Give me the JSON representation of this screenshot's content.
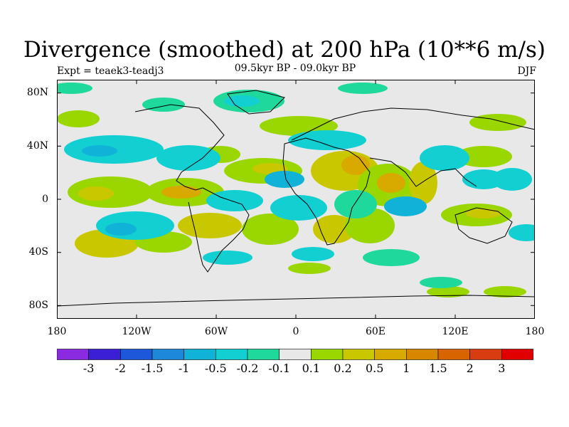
{
  "title": "Divergence (smoothed) at 200 hPa (10**6 m/s)",
  "experiment": "Expt = teaek3-teadj3",
  "period": "09.5kyr BP - 09.0kyr BP",
  "season": "DJF",
  "map": {
    "lon_range": [
      -180,
      180
    ],
    "lat_range": [
      -90,
      90
    ],
    "background_color": "#e8e8e8",
    "lat_ticks": [
      "80N",
      "40N",
      "0",
      "40S",
      "80S"
    ],
    "lon_ticks": [
      "180",
      "120W",
      "60W",
      "0",
      "60E",
      "120E",
      "180"
    ]
  },
  "colorbar": {
    "colors": [
      "#8a2be2",
      "#3a1fd6",
      "#1c58d9",
      "#1e88d8",
      "#10b2d8",
      "#12cfd2",
      "#1fd89c",
      "#e8e8e8",
      "#9ad600",
      "#c9c800",
      "#d8aa00",
      "#d88600",
      "#d86400",
      "#d83c10",
      "#e00000"
    ],
    "labels": [
      "-3",
      "-2",
      "-1.5",
      "-1",
      "-0.5",
      "-0.2",
      "-0.1",
      "0.1",
      "0.2",
      "0.5",
      "1",
      "1.5",
      "2",
      "3"
    ]
  }
}
